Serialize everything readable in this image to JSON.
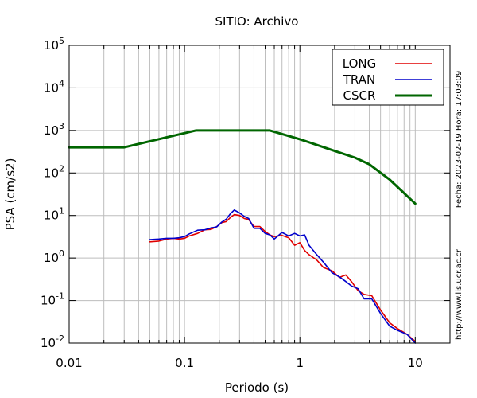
{
  "chart_data": {
    "type": "line",
    "title": "SITIO: Archivo",
    "xlabel": "Periodo (s)",
    "ylabel": "PSA (cm/s2)",
    "xscale": "log",
    "yscale": "log",
    "xlim": [
      0.01,
      20
    ],
    "ylim": [
      0.01,
      100000
    ],
    "grid": true,
    "legend_position": "top-right",
    "x_tick_labels": [
      {
        "value": 0.01,
        "label": "0.01"
      },
      {
        "value": 0.1,
        "label": "0.1"
      },
      {
        "value": 1,
        "label": "1"
      },
      {
        "value": 10,
        "label": "10"
      }
    ],
    "y_tick_labels": [
      {
        "value": 0.01,
        "base": "10",
        "exp": "-2"
      },
      {
        "value": 0.1,
        "base": "10",
        "exp": "-1"
      },
      {
        "value": 1,
        "base": "10",
        "exp": "0"
      },
      {
        "value": 10,
        "base": "10",
        "exp": "1"
      },
      {
        "value": 100,
        "base": "10",
        "exp": "2"
      },
      {
        "value": 1000,
        "base": "10",
        "exp": "3"
      },
      {
        "value": 10000,
        "base": "10",
        "exp": "4"
      },
      {
        "value": 100000,
        "base": "10",
        "exp": "5"
      }
    ],
    "series": [
      {
        "name": "LONG",
        "color": "#e00000",
        "points": [
          [
            0.05,
            2.4
          ],
          [
            0.06,
            2.5
          ],
          [
            0.07,
            2.8
          ],
          [
            0.08,
            2.9
          ],
          [
            0.09,
            2.8
          ],
          [
            0.1,
            2.9
          ],
          [
            0.11,
            3.3
          ],
          [
            0.13,
            3.8
          ],
          [
            0.15,
            4.6
          ],
          [
            0.17,
            4.7
          ],
          [
            0.19,
            5.5
          ],
          [
            0.21,
            6.8
          ],
          [
            0.23,
            7.2
          ],
          [
            0.25,
            9.0
          ],
          [
            0.27,
            10.5
          ],
          [
            0.3,
            10.0
          ],
          [
            0.33,
            8.5
          ],
          [
            0.36,
            8.0
          ],
          [
            0.4,
            5.5
          ],
          [
            0.45,
            5.5
          ],
          [
            0.5,
            4.2
          ],
          [
            0.55,
            3.5
          ],
          [
            0.6,
            3.2
          ],
          [
            0.7,
            3.4
          ],
          [
            0.8,
            3.0
          ],
          [
            0.9,
            2.0
          ],
          [
            1.0,
            2.3
          ],
          [
            1.1,
            1.5
          ],
          [
            1.2,
            1.2
          ],
          [
            1.4,
            0.9
          ],
          [
            1.6,
            0.6
          ],
          [
            1.9,
            0.5
          ],
          [
            2.2,
            0.35
          ],
          [
            2.5,
            0.4
          ],
          [
            2.8,
            0.28
          ],
          [
            3.2,
            0.17
          ],
          [
            3.6,
            0.14
          ],
          [
            4.2,
            0.13
          ],
          [
            5.0,
            0.06
          ],
          [
            6.0,
            0.03
          ],
          [
            7.0,
            0.022
          ],
          [
            8.5,
            0.016
          ],
          [
            10.0,
            0.011
          ]
        ]
      },
      {
        "name": "TRAN",
        "color": "#0000cc",
        "points": [
          [
            0.05,
            2.7
          ],
          [
            0.06,
            2.8
          ],
          [
            0.07,
            2.9
          ],
          [
            0.08,
            2.9
          ],
          [
            0.09,
            3.0
          ],
          [
            0.1,
            3.2
          ],
          [
            0.11,
            3.7
          ],
          [
            0.13,
            4.5
          ],
          [
            0.15,
            4.6
          ],
          [
            0.17,
            5.1
          ],
          [
            0.19,
            5.4
          ],
          [
            0.21,
            7.0
          ],
          [
            0.23,
            8.2
          ],
          [
            0.25,
            11.0
          ],
          [
            0.27,
            13.5
          ],
          [
            0.3,
            11.5
          ],
          [
            0.33,
            9.5
          ],
          [
            0.36,
            8.5
          ],
          [
            0.4,
            5.0
          ],
          [
            0.45,
            5.0
          ],
          [
            0.5,
            3.8
          ],
          [
            0.55,
            3.5
          ],
          [
            0.6,
            2.8
          ],
          [
            0.7,
            4.0
          ],
          [
            0.8,
            3.3
          ],
          [
            0.9,
            3.8
          ],
          [
            1.0,
            3.3
          ],
          [
            1.1,
            3.5
          ],
          [
            1.2,
            2.0
          ],
          [
            1.4,
            1.2
          ],
          [
            1.6,
            0.8
          ],
          [
            1.9,
            0.45
          ],
          [
            2.2,
            0.36
          ],
          [
            2.5,
            0.28
          ],
          [
            2.8,
            0.22
          ],
          [
            3.2,
            0.19
          ],
          [
            3.6,
            0.11
          ],
          [
            4.2,
            0.11
          ],
          [
            5.0,
            0.05
          ],
          [
            6.0,
            0.025
          ],
          [
            7.0,
            0.02
          ],
          [
            8.5,
            0.016
          ],
          [
            10.0,
            0.01
          ]
        ]
      },
      {
        "name": "CSCR",
        "color": "#006600",
        "points": [
          [
            0.01,
            400
          ],
          [
            0.03,
            400
          ],
          [
            0.125,
            1000
          ],
          [
            0.55,
            1000
          ],
          [
            1.0,
            620
          ],
          [
            2.0,
            330
          ],
          [
            3.0,
            230
          ],
          [
            4.0,
            160
          ],
          [
            6.0,
            70
          ],
          [
            10.0,
            19
          ]
        ]
      }
    ],
    "annotations": {
      "date_stamp": "Fecha: 2023-02-19 Hora: 17:03:09",
      "website": "http://www.lis.ucr.ac.cr"
    }
  }
}
